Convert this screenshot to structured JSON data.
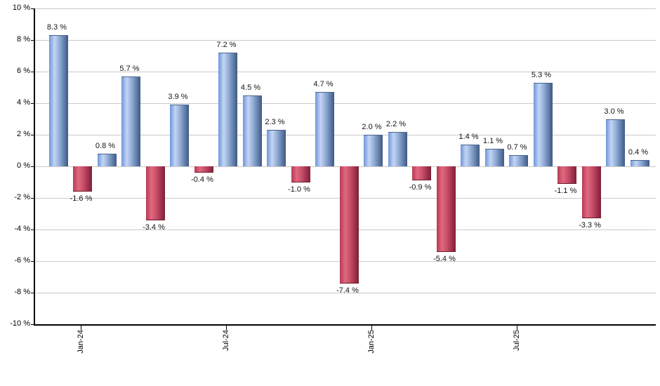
{
  "chart_data": {
    "type": "bar",
    "title": "",
    "xlabel": "",
    "ylabel": "",
    "values": [
      8.3,
      -1.6,
      0.8,
      5.7,
      -3.4,
      3.9,
      -0.4,
      7.2,
      4.5,
      2.3,
      -1.0,
      4.7,
      -7.4,
      2.0,
      2.2,
      -0.9,
      -5.4,
      1.4,
      1.1,
      0.7,
      5.3,
      -1.1,
      -3.3,
      3.0,
      0.4
    ],
    "bar_labels": [
      "8.3 %",
      "-1.6 %",
      "0.8 %",
      "5.7 %",
      "-3.4 %",
      "3.9 %",
      "-0.4 %",
      "7.2 %",
      "4.5 %",
      "2.3 %",
      "-1.0 %",
      "4.7 %",
      "-7.4 %",
      "2.0 %",
      "2.2 %",
      "-0.9 %",
      "-5.4 %",
      "1.4 %",
      "1.1 %",
      "0.7 %",
      "5.3 %",
      "-1.1 %",
      "-3.3 %",
      "3.0 %",
      "0.4 %"
    ],
    "y_axis": {
      "min": -10,
      "max": 10,
      "tick_step": 2,
      "tick_labels": [
        "10 %",
        "8 %",
        "6 %",
        "4 %",
        "2 %",
        "0 %",
        "-2 %",
        "-4 %",
        "-6 %",
        "-8 %",
        "-10 %"
      ]
    },
    "x_axis": {
      "ticks": [
        {
          "bar_index": 1,
          "label": "Jan-24"
        },
        {
          "bar_index": 7,
          "label": "Jul-24"
        },
        {
          "bar_index": 13,
          "label": "Jan-25"
        },
        {
          "bar_index": 19,
          "label": "Jul-25"
        }
      ]
    },
    "grid": true,
    "legend": false,
    "colors": {
      "positive_bar": "#6e95da",
      "positive_bar_highlight": "#c3d5f3",
      "positive_bar_dark": "#3e5982",
      "negative_bar": "#c74e68",
      "negative_bar_highlight": "#e0687f",
      "negative_bar_dark": "#7e2038",
      "gridline": "#c9c9c9",
      "axis": "#000000",
      "label_text": "#141414"
    }
  }
}
